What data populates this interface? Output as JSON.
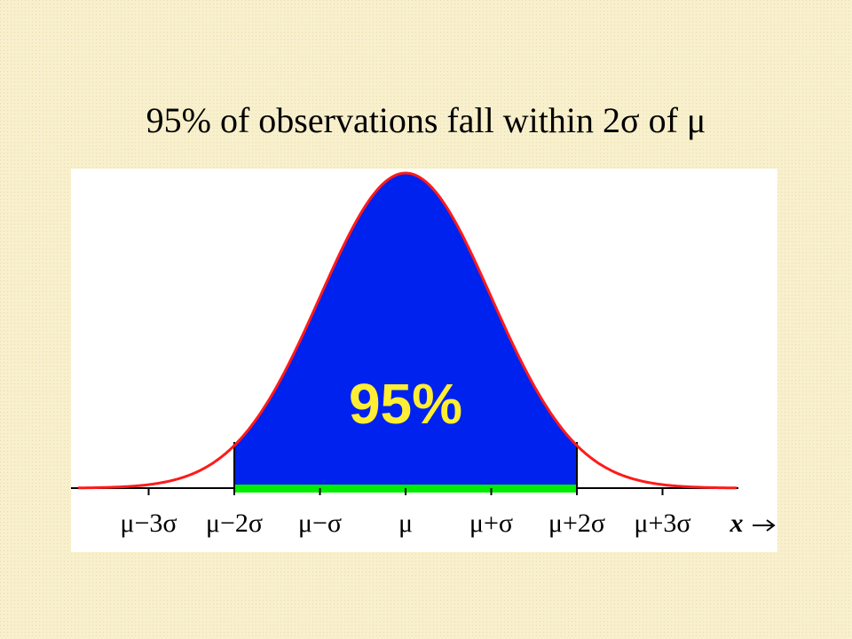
{
  "title": "95% of observations fall within 2σ of μ",
  "diagram": {
    "area_label": "95%",
    "tick_labels": [
      "μ−3σ",
      "μ−2σ",
      "μ−σ",
      "μ",
      "μ+σ",
      "μ+2σ",
      "μ+3σ"
    ],
    "axis_label": "x"
  }
}
